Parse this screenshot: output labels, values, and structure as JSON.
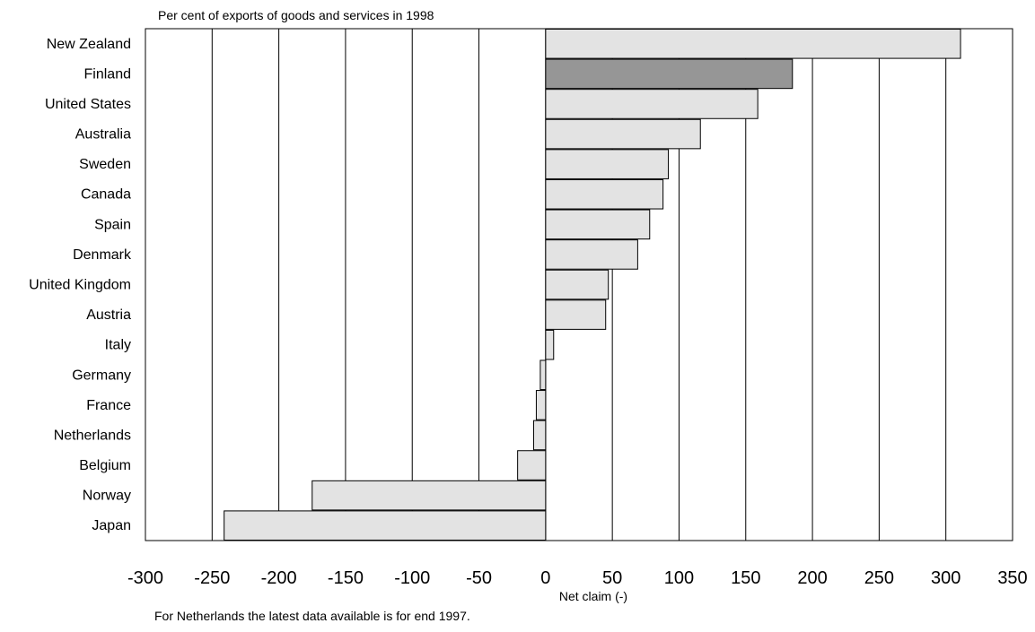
{
  "chart_data": {
    "type": "bar",
    "orientation": "horizontal",
    "subtitle": "Per cent of exports of goods and services in 1998",
    "xlabel": "Net claim (-)",
    "footnote": "For Netherlands the latest data available is for end 1997.",
    "xlim": [
      -300,
      350
    ],
    "xticks": [
      -300,
      -250,
      -200,
      -150,
      -100,
      -50,
      0,
      50,
      100,
      150,
      200,
      250,
      300,
      350
    ],
    "grid": "vertical",
    "bar_color": "#e3e3e3",
    "highlight_color": "#969696",
    "highlight_category": "Finland",
    "categories": [
      "New Zealand",
      "Finland",
      "United States",
      "Australia",
      "Sweden",
      "Canada",
      "Spain",
      "Denmark",
      "United Kingdom",
      "Austria",
      "Italy",
      "Germany",
      "France",
      "Netherlands",
      "Belgium",
      "Norway",
      "Japan"
    ],
    "values": [
      311,
      185,
      159,
      116,
      92,
      88,
      78,
      69,
      47,
      45,
      6,
      -4,
      -7,
      -9,
      -21,
      -175,
      -241
    ]
  }
}
